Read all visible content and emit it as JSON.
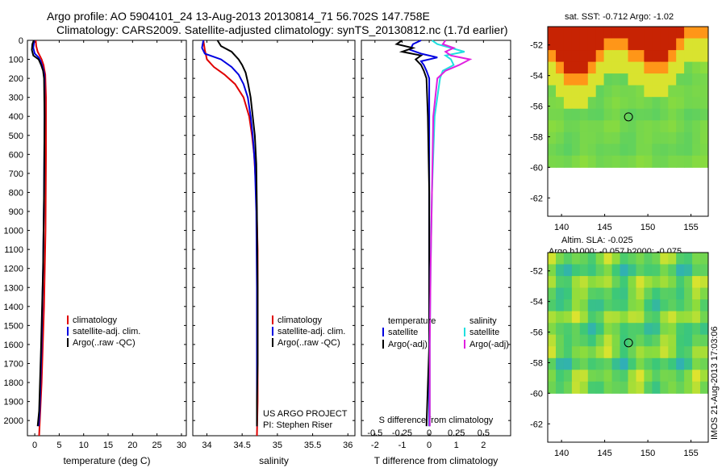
{
  "header": {
    "line1": "Argo profile: AO 5904101_24 13-Aug-2013 20130814_71 56.702S 147.758E",
    "line2": "Climatology: CARS2009. Satellite-adjusted climatology: synTS_20130812.nc (1.7d earlier)"
  },
  "watermark": "IMOS 21-Aug-2013 17:03:06",
  "colors": {
    "climatology": "#e00000",
    "satellite": "#0000e0",
    "argo": "#000000",
    "sal_satellite": "#20e0e0",
    "sal_argo": "#e020e0"
  },
  "chart_data": [
    {
      "type": "line",
      "panel": "temperature",
      "xlabel": "temperature (deg C)",
      "xlim": [
        -1.5,
        31
      ],
      "xticks": [
        "0",
        "5",
        "10",
        "15",
        "20",
        "25",
        "30"
      ],
      "ylim": [
        2080,
        0
      ],
      "yticks": [
        "0",
        "100",
        "200",
        "300",
        "400",
        "500",
        "600",
        "700",
        "800",
        "900",
        "1000",
        "1100",
        "1200",
        "1300",
        "1400",
        "1500",
        "1600",
        "1700",
        "1800",
        "1900",
        "2000"
      ],
      "legend": [
        "climatology",
        "satellite-adj. clim.",
        "Argo(..raw -QC)"
      ],
      "series": [
        {
          "name": "climatology",
          "color": "#e00000",
          "depth": [
            0,
            30,
            60,
            80,
            100,
            130,
            160,
            180,
            300,
            600,
            1000,
            1400,
            1800,
            2080
          ],
          "values": [
            0.2,
            0.3,
            0.6,
            1.0,
            1.4,
            1.8,
            2.0,
            2.15,
            2.3,
            2.3,
            2.2,
            1.9,
            1.4,
            0.9
          ]
        },
        {
          "name": "satellite-adj. clim.",
          "color": "#0000e0",
          "depth": [
            0,
            40,
            70,
            90,
            110,
            140,
            170,
            200,
            400,
            800,
            1200,
            1600,
            1950,
            2030
          ],
          "values": [
            -0.1,
            -0.3,
            0.0,
            0.8,
            1.2,
            1.6,
            1.9,
            2.0,
            2.0,
            1.9,
            1.7,
            1.4,
            1.0,
            0.8
          ]
        },
        {
          "name": "Argo(..raw -QC)",
          "color": "#000000",
          "depth": [
            0,
            20,
            50,
            80,
            100,
            130,
            160,
            200,
            400,
            800,
            1200,
            1600,
            1950,
            2030
          ],
          "values": [
            -0.2,
            -0.5,
            -0.6,
            -0.3,
            0.8,
            1.3,
            1.7,
            1.9,
            2.0,
            1.9,
            1.7,
            1.3,
            0.9,
            0.6
          ]
        }
      ]
    },
    {
      "type": "line",
      "panel": "salinity",
      "xlabel": "salinity",
      "xlim": [
        33.8,
        36.1
      ],
      "xticks": [
        "34",
        "34.5",
        "35",
        "35.5",
        "36"
      ],
      "ylim": [
        2080,
        0
      ],
      "legend": [
        "climatology",
        "satellite-adj. clim.",
        "Argo(..raw -QC)"
      ],
      "series": [
        {
          "name": "climatology",
          "color": "#e00000",
          "depth": [
            0,
            50,
            100,
            140,
            180,
            230,
            300,
            400,
            500,
            600,
            800,
            1100,
            1500,
            1900,
            2080
          ],
          "values": [
            33.95,
            33.97,
            34.0,
            34.1,
            34.25,
            34.4,
            34.52,
            34.6,
            34.64,
            34.67,
            34.7,
            34.72,
            34.72,
            34.72,
            34.71
          ]
        },
        {
          "name": "satellite-adj. clim.",
          "color": "#0000e0",
          "depth": [
            0,
            40,
            70,
            100,
            140,
            180,
            230,
            300,
            400,
            500,
            650,
            900,
            1300,
            1700,
            1900,
            2030
          ],
          "values": [
            33.95,
            33.93,
            33.97,
            34.2,
            34.35,
            34.45,
            34.52,
            34.58,
            34.62,
            34.65,
            34.68,
            34.7,
            34.71,
            34.71,
            34.71,
            34.71
          ]
        },
        {
          "name": "Argo(..raw -QC)",
          "color": "#000000",
          "depth": [
            0,
            30,
            60,
            80,
            100,
            130,
            170,
            220,
            300,
            400,
            500,
            650,
            900,
            1300,
            1700,
            1900,
            2030
          ],
          "values": [
            34.15,
            34.2,
            34.35,
            34.4,
            34.45,
            34.5,
            34.55,
            34.58,
            34.62,
            34.65,
            34.68,
            34.7,
            34.71,
            34.72,
            34.72,
            34.71,
            34.71
          ]
        }
      ],
      "annotation": [
        "US ARGO PROJECT",
        "PI: Stephen Riser"
      ]
    },
    {
      "type": "line",
      "panel": "difference",
      "xlabel": "T difference from climatology",
      "x2label": "S difference from climatology",
      "xlim": [
        -2.5,
        3.0
      ],
      "xticks": [
        "-2",
        "-1",
        "0",
        "1",
        "2"
      ],
      "x2ticks": [
        "-0.5",
        "-0.25",
        "0",
        "0.25",
        "0.5"
      ],
      "ylim": [
        2080,
        0
      ],
      "legend_t_title": "temperature",
      "legend_s_title": "salinity",
      "legend": [
        "satellite",
        "Argo(-adj)",
        "satellite",
        "Argo(-adj)"
      ],
      "series": [
        {
          "name": "satellite",
          "group": "temperature",
          "color": "#0000e0",
          "depth": [
            0,
            20,
            50,
            70,
            90,
            110,
            130,
            160,
            200,
            400,
            800,
            1200,
            1600,
            2030
          ],
          "values": [
            -0.3,
            -0.6,
            -0.7,
            -0.3,
            0.3,
            -0.3,
            -0.2,
            -0.1,
            0.0,
            0.0,
            0.0,
            0.0,
            0.0,
            0.0
          ]
        },
        {
          "name": "Argo(-adj)",
          "group": "temperature",
          "color": "#000000",
          "depth": [
            0,
            20,
            40,
            60,
            80,
            100,
            130,
            160,
            200,
            400,
            800,
            1200,
            1600,
            2030
          ],
          "values": [
            -1.0,
            -1.2,
            -0.6,
            -1.0,
            -0.3,
            -0.5,
            -0.3,
            -0.2,
            -0.1,
            -0.05,
            0.0,
            0.0,
            0.0,
            -0.1
          ]
        },
        {
          "name": "satellite",
          "group": "salinity",
          "color": "#20e0e0",
          "depth": [
            0,
            20,
            40,
            60,
            80,
            100,
            130,
            160,
            200,
            400,
            800,
            1200,
            1600,
            2030
          ],
          "values": [
            0.1,
            0.3,
            0.8,
            1.3,
            0.6,
            0.8,
            0.9,
            0.5,
            0.4,
            0.2,
            0.1,
            0.05,
            0.02,
            0.02
          ]
        },
        {
          "name": "Argo(-adj)",
          "group": "salinity",
          "color": "#e020e0",
          "depth": [
            0,
            20,
            40,
            60,
            80,
            100,
            130,
            160,
            200,
            400,
            800,
            1200,
            1600,
            2030
          ],
          "values": [
            0.6,
            0.5,
            0.9,
            0.6,
            0.8,
            1.5,
            1.1,
            0.6,
            0.3,
            0.15,
            0.1,
            0.05,
            0.02,
            0.02
          ]
        }
      ]
    }
  ],
  "maps": [
    {
      "title_lines": [
        "sat. SST: -0.712 Argo: -1.02"
      ],
      "yticks": [
        "-52",
        "-54",
        "-56",
        "-58",
        "-60",
        "-62"
      ],
      "xticks": [
        "140",
        "145",
        "150",
        "155"
      ],
      "float_lon": 147.758,
      "float_lat": -56.702
    },
    {
      "title_lines": [
        "Altim. SLA: -0.025",
        "Argo h1000: -0.057 h2000: -0.075"
      ],
      "yticks": [
        "-52",
        "-54",
        "-56",
        "-58",
        "-60",
        "-62"
      ],
      "xticks": [
        "140",
        "145",
        "150",
        "155"
      ],
      "float_lon": 147.758,
      "float_lat": -56.702
    }
  ]
}
